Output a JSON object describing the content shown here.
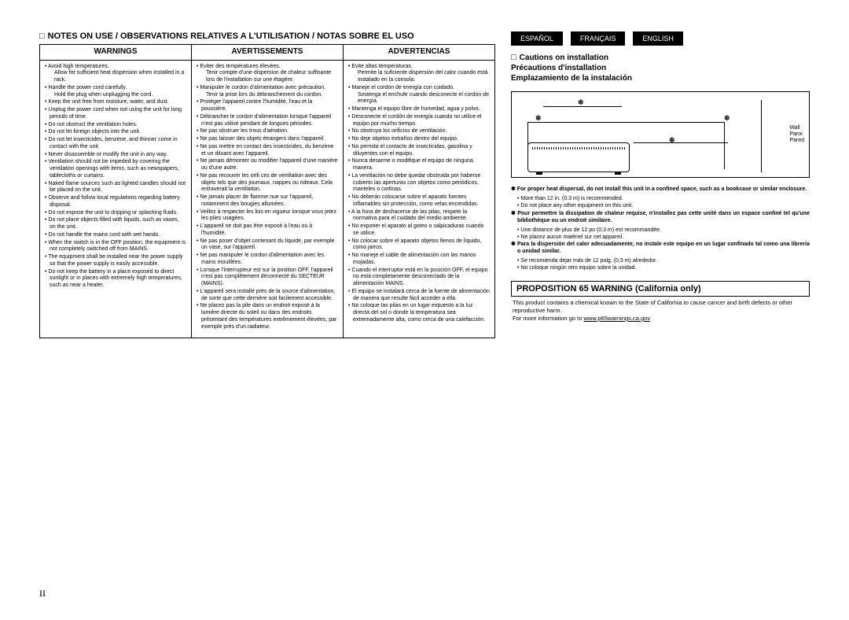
{
  "notes_heading": "NOTES ON USE / OBSERVATIONS RELATIVES A L'UTILISATION / NOTAS SOBRE EL USO",
  "langs": {
    "es": "ESPAÑOL",
    "fr": "FRANÇAIS",
    "en": "ENGLISH"
  },
  "cautions": {
    "en": "Cautions on installation",
    "fr": "Précautions d'installation",
    "es": "Emplazamiento de la instalación"
  },
  "diagram": {
    "wall_en": "Wall",
    "wall_fr": "Paroi",
    "wall_es": "Pared",
    "ast": "✽"
  },
  "columns": {
    "warnings": {
      "head": "WARNINGS",
      "items": [
        "Avoid high temperatures.|Allow for sufficient heat dispersion when installed in a rack.",
        "Handle the power cord carefully.|Hold the plug when unplugging the cord.",
        "Keep the unit free from moisture, water, and dust.",
        "Unplug the power cord when not using the unit for long periods of time.",
        "Do not obstruct the ventilation holes.",
        "Do not let foreign objects into the unit.",
        "Do not let insecticides, benzene, and thinner come in contact with the unit.",
        "Never disassemble or modify the unit in any way.",
        "Ventilation should not be impeded by covering the ventilation openings with items, such as newspapers, tablecloths or curtains.",
        "Naked flame sources such as lighted candles should not be placed on the unit.",
        "Observe and follow local regulations regarding battery disposal.",
        "Do not expose the unit to dripping or splashing fluids.",
        "Do not place objects filled with liquids, such as vases, on the unit.",
        "Do not handle the mains cord with wet hands.",
        "When the switch is in the OFF position, the equipment is not completely switched off from MAINS.",
        "The equipment shall be installed near the power supply so that the power supply is easily accessible.",
        "Do not keep the battery in a place exposed to direct sunlight or in places with extremely high temperatures, such as near a heater."
      ]
    },
    "avertissements": {
      "head": "AVERTISSEMENTS",
      "items": [
        "Eviter des températures élevées.|Tenir compte d'une dispersion de chaleur suffisante lors de l'installation sur une étagère.",
        "Manipuler le cordon d'alimentation avec précaution.|Tenir la prise lors du débranchement du cordon.",
        "Protéger l'appareil contre l'humidité, l'eau et la poussière.",
        "Débrancher le cordon d'alimentation lorsque l'appareil n'est pas utilisé pendant de longues périodes.",
        "Ne pas obstruer les trous d'aération.",
        "Ne pas laisser des objets étrangers dans l'appareil.",
        "Ne pas mettre en contact des insecticides, du benzène et un diluant avec l'appareil.",
        "Ne jamais démonter ou modifier l'appareil d'une manière ou d'une autre.",
        "Ne pas recouvrir les orifi ces de ventilation avec des objets tels que des journaux, nappes ou rideaux. Cela entraverait la ventilation.",
        "Ne jamais placer de flamme nue sur l'appareil, notamment des bougies allumées.",
        "Veillez à respecter les lois en vigueur lorsque vous jetez les piles usagées.",
        "L'appareil ne doit pas être exposé à l'eau ou à l'humidité.",
        "Ne pas poser d'objet contenant du liquide, par exemple un vase, sur l'appareil.",
        "Ne pas manipuler le cordon d'alimentation avec les mains mouillées.",
        "Lorsque l'interrupteur est sur la position OFF, l'appareil n'est pas complètement déconnecté du SECTEUR (MAINS).",
        "L'appareil sera installé près de la source d'alimentation, de sorte que cette dernière soit facilement accessible.",
        "Ne placez pas la pile dans un endroit exposé à la lumière directe du soleil ou dans des endroits présentant des températures extrêmement élevées, par exemple près d'un radiateur."
      ]
    },
    "advertencias": {
      "head": "ADVERTENCIAS",
      "items": [
        "Evite altas temperaturas.|Permite la suficiente dispersión del calor cuando está instalado en la consola.",
        "Maneje el cordón de energía con cuidado.|Sostenga el enchufe cuando desconecte el cordón de energía.",
        "Mantenga el equipo libre de humedad, agua y polvo.",
        "Desconecte el cordón de energía cuando no utilice el equipo por mucho tiempo.",
        "No obstruya los orificios de ventilación.",
        "No deje objetos extraños dentro del equipo.",
        "No permita el contacto de insecticidas, gasolina y diluyentes con el equipo.",
        "Nunca desarme o modifique el equipo de ninguna manera.",
        "La ventilación no debe quedar obstruida por haberse cubierto las aperturas con objetos como periódicos, manteles o cortinas.",
        "No deberán colocarse sobre el aparato fuentes inflamables sin protección, como velas encendidas.",
        "A la hora de deshacerse de las pilas, respete la normativa para el cuidado del medio ambiente.",
        "No exponer el aparato al goteo o salpicaduras cuando se utilice.",
        "No colocar sobre el aparato objetos llenos de líquido, como jarros.",
        "No maneje el cable de alimentación con las manos mojadas.",
        "Cuando el interruptor está en la posición OFF, el equipo no está completamente desconectado de la alimentación MAINS.",
        "El equipo se instalará cerca de la fuente de alimentación de manera que resulte fácil acceder a ella.",
        "No coloque las pilas en un lugar expuesto a la luz directa del sol o donde la temperatura sea extremadamente alta, como cerca de una calefacción."
      ]
    }
  },
  "dispersal": [
    {
      "bold": "For proper heat dispersal, do not install this unit in a confined space, such as a bookcase or similar enclosure.",
      "bullets": [
        "More than 12 in. (0.3 m) is recommended.",
        "Do not place any other equipment on this unit."
      ]
    },
    {
      "bold": "Pour permettre la dissipation de chaleur requise, n'installez pas cette unité dans un espace confiné tel qu'une bibliothèque ou un endroit similaire.",
      "bullets": [
        "Une distance de plus de 12 po (0,3 m) est recommandée.",
        "Ne placez aucun matériel sur cet appareil."
      ]
    },
    {
      "bold": "Para la dispersión del calor adecuadamente, no instale este equipo en un lugar confinado tal como una librería o unidad similar.",
      "bullets": [
        "Se recomienda dejar más de 12 pulg. (0,3 m) alrededor.",
        "No coloque ningún otro equipo sobre la unidad."
      ]
    }
  ],
  "prop65": {
    "head": "PROPOSITION 65 WARNING (California only)",
    "body": "This product contains a chemical known to the State of California to cause cancer and birth defects or other reproductive harm.",
    "more": "For more information go to ",
    "link": "www.p65warnings.ca.gov"
  },
  "page_number": "II"
}
